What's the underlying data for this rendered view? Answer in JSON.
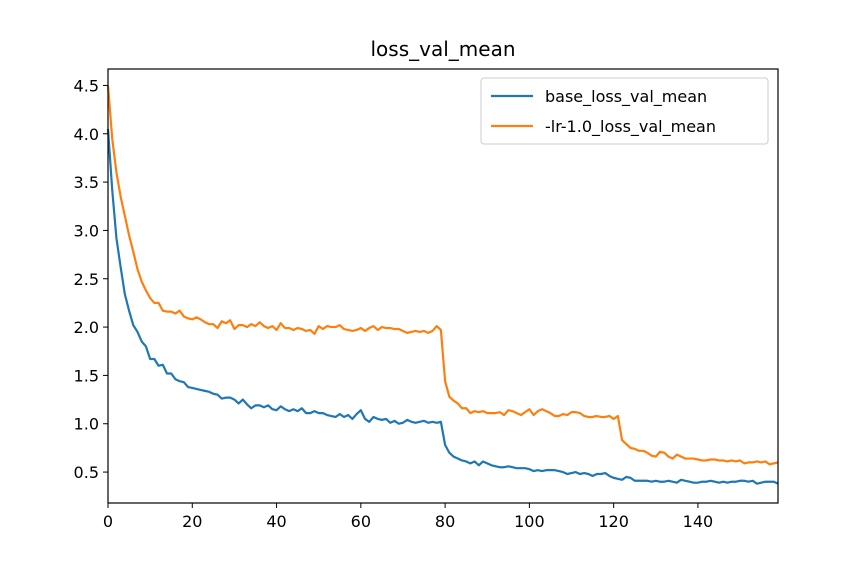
{
  "chart_data": {
    "type": "line",
    "title": "loss_val_mean",
    "xlabel": "",
    "ylabel": "",
    "xlim": [
      0,
      159
    ],
    "ylim": [
      0.18,
      4.67
    ],
    "xticks": [
      0,
      20,
      40,
      60,
      80,
      100,
      120,
      140
    ],
    "yticks": [
      0.5,
      1.0,
      1.5,
      2.0,
      2.5,
      3.0,
      3.5,
      4.0,
      4.5
    ],
    "xtick_labels": [
      "0",
      "20",
      "40",
      "60",
      "80",
      "100",
      "120",
      "140"
    ],
    "ytick_labels": [
      "0.5",
      "1.0",
      "1.5",
      "2.0",
      "2.5",
      "3.0",
      "3.5",
      "4.0",
      "4.5"
    ],
    "grid": false,
    "legend_position": "upper right",
    "series": [
      {
        "name": "base_loss_val_mean",
        "color": "#1f77b4",
        "values": [
          4.05,
          3.42,
          2.92,
          2.62,
          2.34,
          2.17,
          2.02,
          1.95,
          1.85,
          1.8,
          1.67,
          1.67,
          1.6,
          1.61,
          1.52,
          1.52,
          1.46,
          1.44,
          1.43,
          1.38,
          1.37,
          1.36,
          1.35,
          1.34,
          1.33,
          1.31,
          1.3,
          1.26,
          1.27,
          1.27,
          1.25,
          1.21,
          1.25,
          1.2,
          1.16,
          1.19,
          1.19,
          1.17,
          1.19,
          1.15,
          1.14,
          1.18,
          1.15,
          1.13,
          1.15,
          1.13,
          1.16,
          1.11,
          1.11,
          1.13,
          1.11,
          1.11,
          1.09,
          1.08,
          1.07,
          1.1,
          1.07,
          1.09,
          1.05,
          1.1,
          1.14,
          1.05,
          1.02,
          1.07,
          1.05,
          1.04,
          1.05,
          1.01,
          1.03,
          1.0,
          1.01,
          1.04,
          1.02,
          1.01,
          1.02,
          1.03,
          1.01,
          1.02,
          1.01,
          1.02,
          0.78,
          0.7,
          0.66,
          0.64,
          0.62,
          0.61,
          0.59,
          0.61,
          0.57,
          0.61,
          0.59,
          0.57,
          0.56,
          0.55,
          0.55,
          0.56,
          0.55,
          0.54,
          0.54,
          0.54,
          0.53,
          0.51,
          0.52,
          0.51,
          0.52,
          0.52,
          0.52,
          0.51,
          0.5,
          0.48,
          0.49,
          0.5,
          0.48,
          0.49,
          0.48,
          0.46,
          0.48,
          0.48,
          0.49,
          0.46,
          0.44,
          0.43,
          0.42,
          0.45,
          0.44,
          0.41,
          0.41,
          0.41,
          0.41,
          0.4,
          0.41,
          0.4,
          0.4,
          0.41,
          0.4,
          0.39,
          0.42,
          0.41,
          0.4,
          0.39,
          0.39,
          0.4,
          0.4,
          0.41,
          0.4,
          0.39,
          0.4,
          0.39,
          0.4,
          0.4,
          0.41,
          0.41,
          0.4,
          0.41,
          0.38,
          0.39,
          0.4,
          0.4,
          0.4,
          0.38
        ],
        "points_note": "x = index 0..159"
      },
      {
        "name": "-lr-1.0_loss_val_mean",
        "color": "#ff7f0e",
        "values": [
          4.5,
          3.95,
          3.6,
          3.35,
          3.15,
          2.95,
          2.78,
          2.6,
          2.47,
          2.38,
          2.3,
          2.25,
          2.25,
          2.17,
          2.16,
          2.16,
          2.14,
          2.17,
          2.11,
          2.09,
          2.08,
          2.1,
          2.08,
          2.05,
          2.03,
          2.03,
          1.99,
          2.06,
          2.04,
          2.07,
          1.98,
          2.02,
          2.02,
          2.0,
          2.03,
          2.01,
          2.05,
          2.01,
          1.99,
          2.01,
          1.97,
          2.04,
          1.99,
          1.99,
          1.97,
          1.99,
          1.98,
          1.96,
          1.97,
          1.93,
          2.01,
          1.98,
          2.01,
          2.0,
          2.0,
          2.02,
          1.98,
          1.97,
          1.96,
          1.97,
          1.99,
          1.96,
          1.99,
          2.01,
          1.97,
          2.0,
          1.99,
          1.99,
          1.98,
          1.98,
          1.96,
          1.94,
          1.95,
          1.96,
          1.95,
          1.96,
          1.94,
          1.96,
          2.01,
          1.97,
          1.44,
          1.28,
          1.24,
          1.21,
          1.16,
          1.16,
          1.11,
          1.13,
          1.12,
          1.13,
          1.11,
          1.11,
          1.11,
          1.12,
          1.09,
          1.14,
          1.13,
          1.11,
          1.09,
          1.12,
          1.15,
          1.09,
          1.13,
          1.15,
          1.13,
          1.11,
          1.08,
          1.08,
          1.1,
          1.09,
          1.12,
          1.12,
          1.11,
          1.08,
          1.07,
          1.07,
          1.08,
          1.07,
          1.07,
          1.08,
          1.05,
          1.08,
          0.83,
          0.79,
          0.75,
          0.74,
          0.72,
          0.72,
          0.7,
          0.67,
          0.66,
          0.71,
          0.7,
          0.66,
          0.64,
          0.68,
          0.66,
          0.64,
          0.64,
          0.64,
          0.63,
          0.62,
          0.62,
          0.63,
          0.63,
          0.62,
          0.62,
          0.61,
          0.62,
          0.61,
          0.62,
          0.59,
          0.6,
          0.6,
          0.61,
          0.6,
          0.61,
          0.58,
          0.59,
          0.6
        ],
        "points_note": "x = index 0..159"
      }
    ]
  }
}
